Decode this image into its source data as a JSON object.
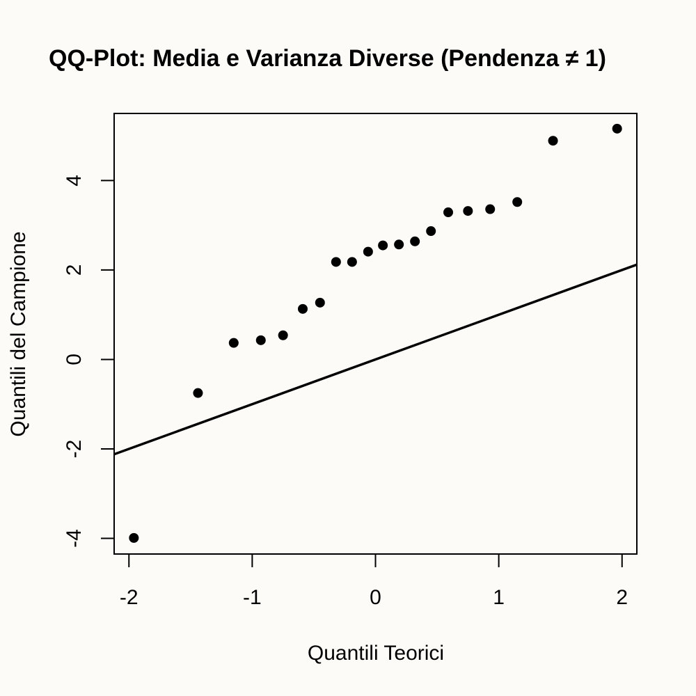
{
  "chart_data": {
    "type": "scatter",
    "title": "QQ-Plot: Media e Varianza Diverse (Pendenza ≠ 1)",
    "xlabel": "Quantili Teorici",
    "ylabel": "Quantili del Campione",
    "xlim": [
      -2.12,
      2.12
    ],
    "ylim": [
      -4.35,
      5.5
    ],
    "xticks": [
      -2,
      -1,
      0,
      1,
      2
    ],
    "yticks": [
      -4,
      -2,
      0,
      2,
      4
    ],
    "xtick_labels": [
      "-2",
      "-1",
      "0",
      "1",
      "2"
    ],
    "ytick_labels": [
      "-4",
      "-2",
      "0",
      "2",
      "4"
    ],
    "grid": false,
    "series": [
      {
        "x": [
          -1.96,
          -1.44,
          -1.15,
          -0.93,
          -0.75,
          -0.59,
          -0.45,
          -0.32,
          -0.19,
          -0.06,
          0.06,
          0.19,
          0.32,
          0.45,
          0.59,
          0.75,
          0.93,
          1.15,
          1.44,
          1.96
        ],
        "y": [
          -3.99,
          -0.75,
          0.37,
          0.43,
          0.54,
          1.13,
          1.27,
          2.18,
          2.18,
          2.41,
          2.55,
          2.57,
          2.64,
          2.87,
          3.29,
          3.32,
          3.36,
          3.52,
          4.89,
          5.16
        ]
      }
    ],
    "reference_line": {
      "intercept": 0,
      "slope": 1
    },
    "colors": {
      "background": "#fcfbf7",
      "points": "#000000",
      "line": "#000000"
    }
  }
}
